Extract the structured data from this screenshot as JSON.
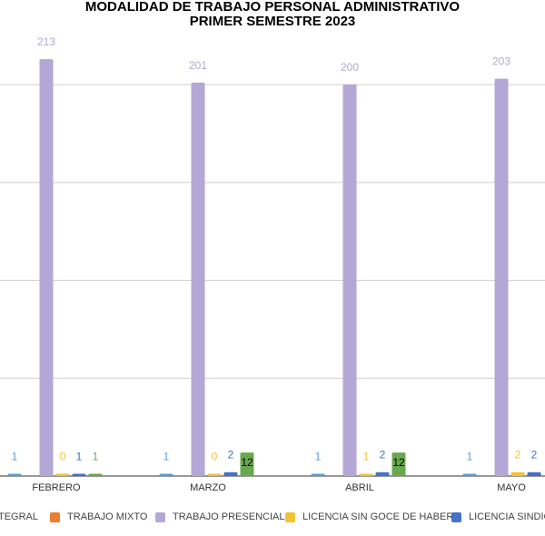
{
  "chart_data": {
    "type": "bar",
    "title": "MODALIDAD DE TRABAJO PERSONAL ADMINISTRATIVO",
    "subtitle": "PRIMER SEMESTRE 2023",
    "categories": [
      "FEBRERO",
      "MARZO",
      "ABRIL",
      "MAYO"
    ],
    "ylim": [
      0,
      220
    ],
    "grid": true,
    "legend_position": "bottom",
    "series": [
      {
        "name": "TELETRABAJO INTEGRAL",
        "legend_visible": "TEGRAL",
        "color": "#5b9bd5",
        "values": [
          1,
          1,
          1,
          1
        ]
      },
      {
        "name": "TRABAJO MIXTO",
        "color": "#ed7d31",
        "values": [
          null,
          null,
          null,
          null
        ]
      },
      {
        "name": "TRABAJO PRESENCIAL",
        "color": "#b4a7d6",
        "values": [
          213,
          201,
          200,
          203
        ]
      },
      {
        "name": "LICENCIA SIN GOCE DE HABER",
        "color": "#f1c232",
        "values": [
          0,
          0,
          1,
          2
        ]
      },
      {
        "name": "LICENCIA SINDICAL",
        "legend_visible": "LICENCIA SINDICA",
        "color": "#4472c4",
        "values": [
          1,
          2,
          2,
          2
        ]
      },
      {
        "name": "",
        "color": "#6aa84f",
        "values": [
          1,
          12,
          12,
          null
        ]
      }
    ]
  }
}
